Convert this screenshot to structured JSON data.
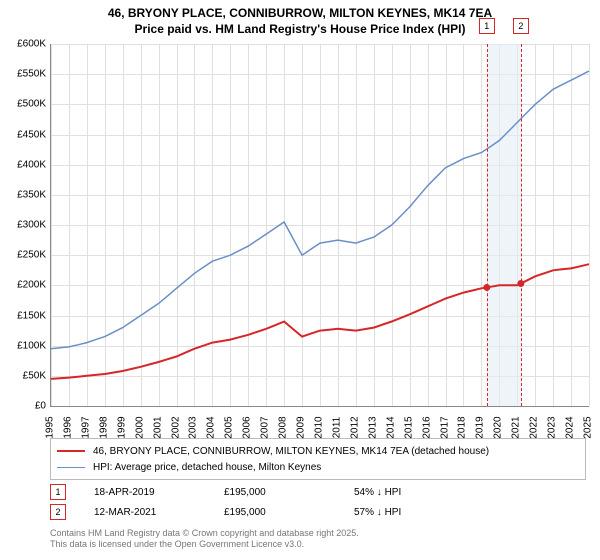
{
  "title_line1": "46, BRYONY PLACE, CONNIBURROW, MILTON KEYNES, MK14 7EA",
  "title_line2": "Price paid vs. HM Land Registry's House Price Index (HPI)",
  "chart": {
    "type": "line",
    "x_years": [
      1995,
      1996,
      1997,
      1998,
      1999,
      2000,
      2001,
      2002,
      2003,
      2004,
      2005,
      2006,
      2007,
      2008,
      2009,
      2010,
      2011,
      2012,
      2013,
      2014,
      2015,
      2016,
      2017,
      2018,
      2019,
      2020,
      2021,
      2022,
      2023,
      2024,
      2025
    ],
    "ylim": [
      0,
      600000
    ],
    "ytick_step": 50000,
    "yticks": [
      "£0",
      "£50K",
      "£100K",
      "£150K",
      "£200K",
      "£250K",
      "£300K",
      "£350K",
      "£400K",
      "£450K",
      "£500K",
      "£550K",
      "£600K"
    ],
    "background_color": "#ffffff",
    "grid_color": "#e0e0e0",
    "series": {
      "hpi": {
        "label": "HPI: Average price, detached house, Milton Keynes",
        "color": "#6a8fc7",
        "line_width": 1.5,
        "values": [
          95000,
          98000,
          105000,
          115000,
          130000,
          150000,
          170000,
          195000,
          220000,
          240000,
          250000,
          265000,
          285000,
          305000,
          250000,
          270000,
          275000,
          270000,
          280000,
          300000,
          330000,
          365000,
          395000,
          410000,
          420000,
          440000,
          470000,
          500000,
          525000,
          540000,
          555000
        ]
      },
      "property": {
        "label": "46, BRYONY PLACE, CONNIBURROW, MILTON KEYNES, MK14 7EA (detached house)",
        "color": "#d62728",
        "line_width": 2,
        "values": [
          45000,
          47000,
          50000,
          53000,
          58000,
          65000,
          73000,
          82000,
          95000,
          105000,
          110000,
          118000,
          128000,
          140000,
          115000,
          125000,
          128000,
          125000,
          130000,
          140000,
          152000,
          165000,
          178000,
          188000,
          195000,
          200000,
          200000,
          215000,
          225000,
          228000,
          235000
        ]
      }
    },
    "events": [
      {
        "idx": "1",
        "date": "18-APR-2019",
        "price": "£195,000",
        "vs_hpi": "54% ↓ HPI",
        "x_year": 2019.3
      },
      {
        "idx": "2",
        "date": "12-MAR-2021",
        "price": "£195,000",
        "vs_hpi": "57% ↓ HPI",
        "x_year": 2021.2
      }
    ],
    "event_band_color": "#e5ecf5",
    "event_line_color": "#d62728"
  },
  "footer_line1": "Contains HM Land Registry data © Crown copyright and database right 2025.",
  "footer_line2": "This data is licensed under the Open Government Licence v3.0."
}
